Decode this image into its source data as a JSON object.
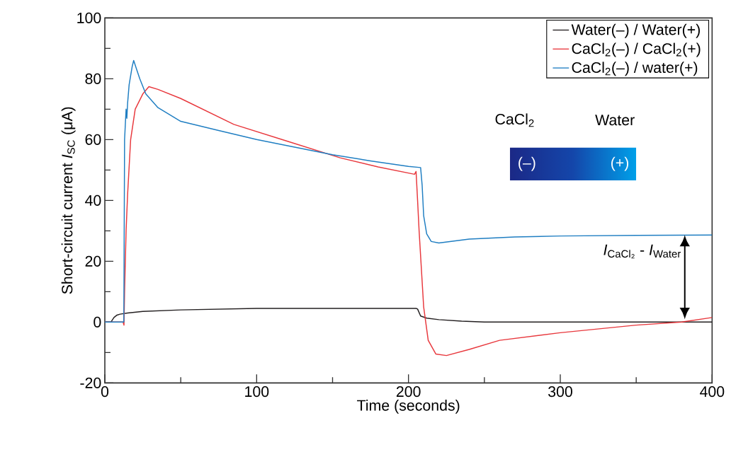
{
  "chart_data": {
    "type": "line",
    "xlabel": "Time (seconds)",
    "ylabel": "Short-circuit current *I*$_{SC}$ (μA)",
    "xlim": [
      0,
      400
    ],
    "ylim": [
      -20,
      100
    ],
    "xticks": [
      0,
      100,
      200,
      300,
      400
    ],
    "yticks": [
      -20,
      0,
      20,
      40,
      60,
      80,
      100
    ],
    "legend": "top right",
    "annotations": [
      "CaCl$_{2}$",
      "Water",
      "(–)",
      "(+)",
      "*I*$_{CaCl₂}$ - *I*$_{Water}$"
    ],
    "series": [
      {
        "name": "Water(–) / Water(+)",
        "color": "#231f20",
        "x": [
          0,
          4,
          6,
          8,
          10,
          15,
          25,
          50,
          100,
          150,
          205,
          206,
          208,
          212,
          220,
          235,
          250,
          300,
          350,
          400
        ],
        "values": [
          0,
          0,
          1.5,
          2.3,
          2.6,
          3,
          3.5,
          4,
          4.5,
          4.5,
          4.5,
          4.3,
          2,
          1.3,
          0.8,
          0.3,
          0,
          0,
          0,
          0
        ]
      },
      {
        "name": "CaCl$_{2}$(–) / CaCl$_{2}$(+)",
        "color": "#e8383d",
        "x": [
          0,
          12,
          12.6,
          13,
          14,
          15,
          17,
          20,
          25,
          29,
          35,
          50,
          85,
          120,
          155,
          180,
          204,
          205,
          206,
          207,
          210,
          213,
          218,
          225,
          240,
          260,
          300,
          350,
          380,
          400
        ],
        "values": [
          0,
          0,
          -1,
          10,
          30,
          42,
          60,
          70,
          75,
          77.4,
          76.5,
          73.5,
          65,
          59.5,
          54,
          51,
          48.6,
          49.5,
          40,
          30,
          5,
          -6,
          -10.5,
          -11,
          -9,
          -6,
          -3.5,
          -1,
          0,
          1.5
        ]
      },
      {
        "name": "CaCl$_{2}$(–) / water(+)",
        "color": "#1f7ec2",
        "x": [
          0,
          12.5,
          13,
          14,
          14.5,
          15,
          16,
          18,
          19,
          21,
          23,
          27,
          35,
          50,
          75,
          100,
          150,
          175,
          200,
          208,
          209,
          210,
          212,
          215,
          220,
          240,
          270,
          300,
          350,
          400
        ],
        "values": [
          0,
          0,
          60,
          70,
          67,
          72,
          78,
          84,
          86,
          83,
          80,
          75,
          70.5,
          66,
          63,
          60,
          55,
          53,
          51.2,
          50.8,
          45,
          35,
          29,
          26.5,
          26,
          27.3,
          28,
          28.3,
          28.5,
          28.6
        ]
      }
    ]
  }
}
